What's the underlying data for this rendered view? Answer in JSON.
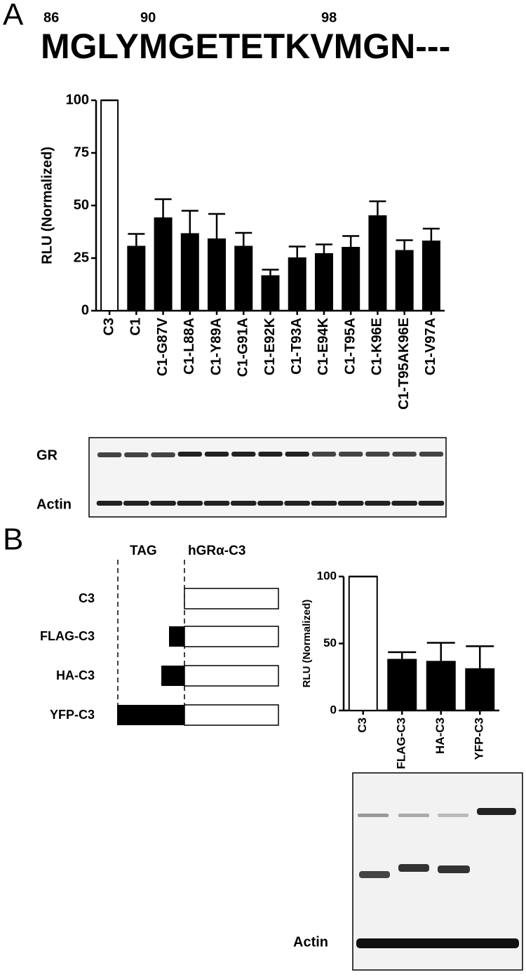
{
  "panel_a": {
    "label": "A",
    "sequence": "MGLYMGETETKVMGN---",
    "positions": [
      86,
      90,
      98
    ]
  },
  "chart_data": [
    {
      "type": "bar",
      "y_label": "RLU (Normalized)",
      "categories": [
        "C3",
        "C1",
        "C1-G87V",
        "C1-L88A",
        "C1-Y89A",
        "C1-G91A",
        "C1-E92K",
        "C1-T93A",
        "C1-E94K",
        "C1-T95A",
        "C1-K96E",
        "C1-T95AK96E",
        "C1-V97A"
      ],
      "values": [
        100,
        30.5,
        44,
        36.5,
        34,
        30.5,
        16.5,
        25,
        27,
        30,
        45,
        28.5,
        33
      ],
      "errors": [
        0,
        6,
        9,
        11,
        12,
        6.5,
        3,
        5.5,
        4.5,
        5.5,
        7,
        5,
        6
      ],
      "colors": [
        "#ffffff",
        "#000000",
        "#000000",
        "#000000",
        "#000000",
        "#000000",
        "#000000",
        "#000000",
        "#000000",
        "#000000",
        "#000000",
        "#000000",
        "#000000"
      ],
      "ylim": [
        0,
        100
      ],
      "yticks": [
        0,
        25,
        50,
        75,
        100
      ]
    },
    {
      "type": "bar",
      "y_label": "RLU (Normalized)",
      "categories": [
        "C3",
        "FLAG-C3",
        "HA-C3",
        "YFP-C3"
      ],
      "values": [
        100,
        38,
        36.5,
        31
      ],
      "errors": [
        0,
        5.5,
        14,
        17
      ],
      "colors": [
        "#ffffff",
        "#000000",
        "#000000",
        "#000000"
      ],
      "ylim": [
        0,
        100
      ],
      "yticks": [
        0,
        50,
        100
      ]
    }
  ],
  "blot_a": {
    "labels": [
      "GR",
      "Actin"
    ]
  },
  "panel_b": {
    "label": "B",
    "tag_header": "TAG",
    "gr_header": "hGRα-C3",
    "constructs": [
      "C3",
      "FLAG-C3",
      "HA-C3",
      "YFP-C3"
    ]
  },
  "blot_b": {
    "label": "Actin"
  }
}
